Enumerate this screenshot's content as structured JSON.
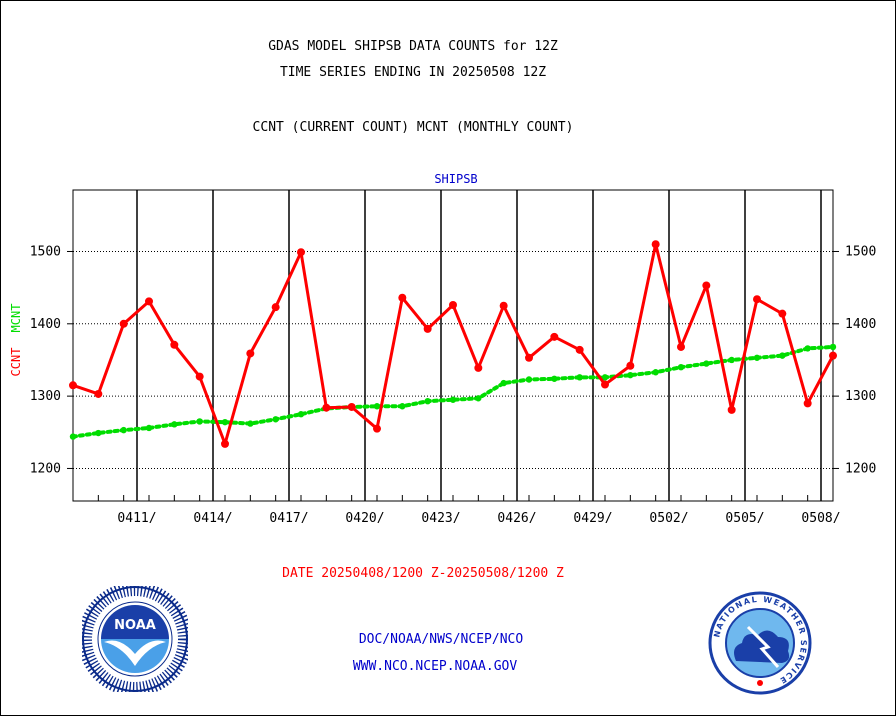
{
  "header": {
    "title_line1": "GDAS MODEL SHIPSB DATA COUNTS for 12Z",
    "title_line2": "TIME SERIES ENDING IN 20250508 12Z",
    "subtitle": "CCNT (CURRENT COUNT) MCNT (MONTHLY COUNT)"
  },
  "footer": {
    "date_range": "DATE 20250408/1200 Z-20250508/1200 Z",
    "org_line": "DOC/NOAA/NWS/NCEP/NCO",
    "url_line": "WWW.NCO.NCEP.NOAA.GOV"
  },
  "logos": {
    "noaa_text": "NOAA",
    "nws_ring_text": "NATIONAL WEATHER SERVICE"
  },
  "chart_data": {
    "type": "line",
    "title": "SHIPSB",
    "ylabel_ccnt": "CCNT",
    "ylabel_mcnt": "MCNT",
    "xlabel": "",
    "ylim": [
      1155,
      1585
    ],
    "xlim": [
      0,
      30
    ],
    "yticks": [
      1200,
      1300,
      1400,
      1500
    ],
    "xticks": [
      {
        "x": 3,
        "label": "0411/"
      },
      {
        "x": 6,
        "label": "0414/"
      },
      {
        "x": 9,
        "label": "0417/"
      },
      {
        "x": 12,
        "label": "0420/"
      },
      {
        "x": 15,
        "label": "0423/"
      },
      {
        "x": 18,
        "label": "0426/"
      },
      {
        "x": 21,
        "label": "0429/"
      },
      {
        "x": 24,
        "label": "0502/"
      },
      {
        "x": 27,
        "label": "0505/"
      },
      {
        "x": 30,
        "label": "0508/"
      }
    ],
    "grid": true,
    "series": [
      {
        "name": "CCNT",
        "color": "#ff0000",
        "x": [
          0,
          1,
          2,
          3,
          4,
          5,
          6,
          7,
          8,
          9,
          10,
          11,
          12,
          13,
          14,
          15,
          16,
          17,
          18,
          19,
          20,
          21,
          22,
          23,
          24,
          25,
          26,
          27,
          28,
          29,
          30
        ],
        "values": [
          1315,
          1303,
          1400,
          1431,
          1371,
          1327,
          1234,
          1359,
          1423,
          1499,
          1284,
          1285,
          1255,
          1436,
          1393,
          1426,
          1339,
          1425,
          1353,
          1382,
          1364,
          1316,
          1342,
          1510,
          1368,
          1453,
          1281,
          1434,
          1414,
          1290,
          1356
        ]
      },
      {
        "name": "MCNT",
        "color": "#00dd00",
        "x": [
          0,
          1,
          2,
          3,
          4,
          5,
          6,
          7,
          8,
          9,
          10,
          11,
          12,
          13,
          14,
          15,
          16,
          17,
          18,
          19,
          20,
          21,
          22,
          23,
          24,
          25,
          26,
          27,
          28,
          29,
          30
        ],
        "values": [
          1244,
          1249,
          1253,
          1256,
          1261,
          1265,
          1264,
          1262,
          1268,
          1275,
          1283,
          1285,
          1286,
          1286,
          1293,
          1295,
          1297,
          1318,
          1323,
          1324,
          1326,
          1326,
          1329,
          1333,
          1340,
          1345,
          1350,
          1353,
          1356,
          1366,
          1368
        ]
      }
    ]
  }
}
